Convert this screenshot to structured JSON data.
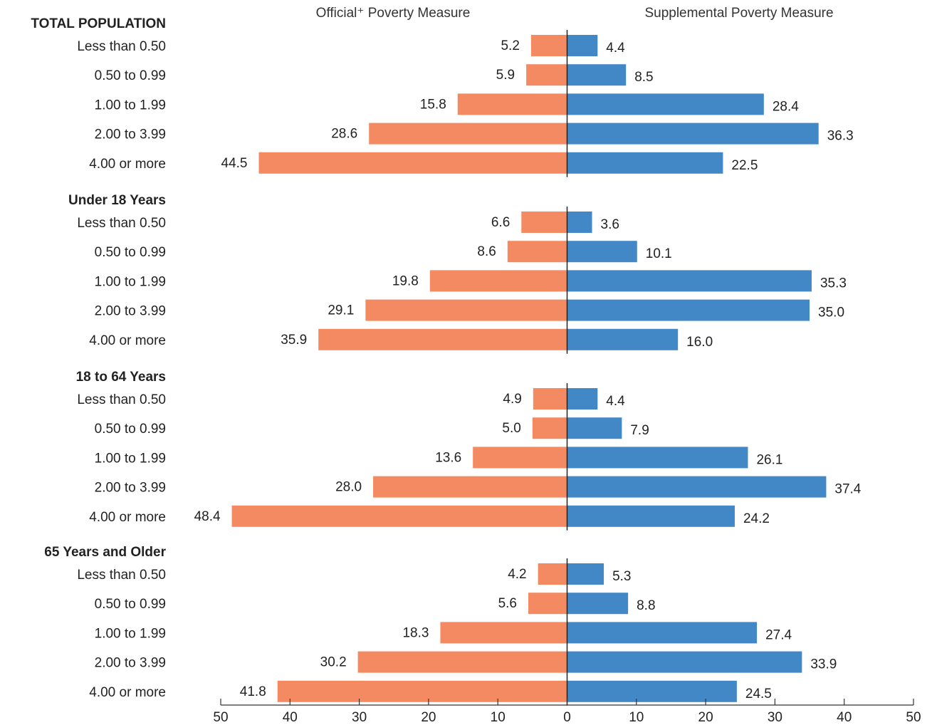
{
  "chart_data": {
    "type": "bar",
    "orientation": "horizontal-diverging",
    "series": [
      {
        "name": "Official⁺ Poverty Measure",
        "side": "left",
        "color": "#f48a62"
      },
      {
        "name": "Supplemental Poverty Measure",
        "side": "right",
        "color": "#4287c6"
      }
    ],
    "xlim": [
      -50,
      50
    ],
    "xticks": [
      -50,
      -40,
      -30,
      -20,
      -10,
      0,
      10,
      20,
      30,
      40,
      50
    ],
    "xtick_labels": [
      "50",
      "40",
      "30",
      "20",
      "10",
      "0",
      "10",
      "20",
      "30",
      "40",
      "50"
    ],
    "groups": [
      {
        "name": "TOTAL POPULATION",
        "categories": [
          "Less than 0.50",
          "0.50 to 0.99",
          "1.00 to 1.99",
          "2.00 to 3.99",
          "4.00 or more"
        ],
        "official": [
          5.2,
          5.9,
          15.8,
          28.6,
          44.5
        ],
        "official_labels": [
          "5.2",
          "5.9",
          "15.8",
          "28.6",
          "44.5"
        ],
        "supplemental": [
          4.4,
          8.5,
          28.4,
          36.3,
          22.5
        ],
        "supplemental_labels": [
          "4.4",
          "8.5",
          "28.4",
          "36.3",
          "22.5"
        ]
      },
      {
        "name": "Under 18 Years",
        "categories": [
          "Less than 0.50",
          "0.50 to 0.99",
          "1.00 to 1.99",
          "2.00 to 3.99",
          "4.00 or more"
        ],
        "official": [
          6.6,
          8.6,
          19.8,
          29.1,
          35.9
        ],
        "official_labels": [
          "6.6",
          "8.6",
          "19.8",
          "29.1",
          "35.9"
        ],
        "supplemental": [
          3.6,
          10.1,
          35.3,
          35.0,
          16.0
        ],
        "supplemental_labels": [
          "3.6",
          "10.1",
          "35.3",
          "35.0",
          "16.0"
        ]
      },
      {
        "name": "18 to 64 Years",
        "categories": [
          "Less than 0.50",
          "0.50 to 0.99",
          "1.00 to 1.99",
          "2.00 to 3.99",
          "4.00 or more"
        ],
        "official": [
          4.9,
          5.0,
          13.6,
          28.0,
          48.4
        ],
        "official_labels": [
          "4.9",
          "5.0",
          "13.6",
          "28.0",
          "48.4"
        ],
        "supplemental": [
          4.4,
          7.9,
          26.1,
          37.4,
          24.2
        ],
        "supplemental_labels": [
          "4.4",
          "7.9",
          "26.1",
          "37.4",
          "24.2"
        ]
      },
      {
        "name": "65 Years and Older",
        "categories": [
          "Less than 0.50",
          "0.50 to 0.99",
          "1.00 to 1.99",
          "2.00 to 3.99",
          "4.00 or more"
        ],
        "official": [
          4.2,
          5.6,
          18.3,
          30.2,
          41.8
        ],
        "official_labels": [
          "4.2",
          "5.6",
          "18.3",
          "30.2",
          "41.8"
        ],
        "supplemental": [
          5.3,
          8.8,
          27.4,
          33.9,
          24.5
        ],
        "supplemental_labels": [
          "5.3",
          "8.8",
          "27.4",
          "33.9",
          "24.5"
        ]
      }
    ]
  }
}
